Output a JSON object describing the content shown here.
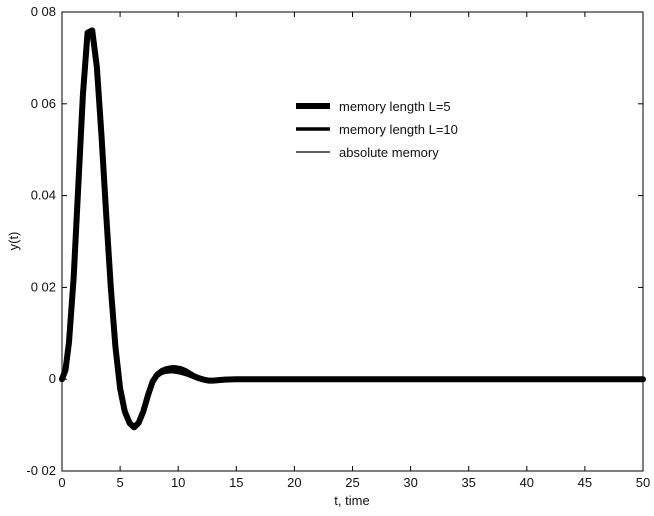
{
  "chart_data": {
    "type": "line",
    "title": "",
    "xlabel": "t, time",
    "ylabel": "y(t)",
    "xlim": [
      0,
      50
    ],
    "ylim": [
      -0.02,
      0.08
    ],
    "xticks": [
      0,
      5,
      10,
      15,
      20,
      25,
      30,
      35,
      40,
      45,
      50
    ],
    "xtick_labels": [
      "0",
      "5",
      "10",
      "15",
      "20",
      "25",
      "30",
      "35",
      "40",
      "45",
      "50"
    ],
    "yticks": [
      -0.02,
      0,
      0.02,
      0.04,
      0.06,
      0.08
    ],
    "ytick_labels": [
      "-0 02",
      "0",
      "0 02",
      "0.04",
      "0 06",
      "0 08"
    ],
    "grid": false,
    "legend_position": "upper-right",
    "series": [
      {
        "name": "memory length L=5",
        "color": "#000000",
        "x": [
          0,
          0.3,
          0.6,
          1.0,
          1.4,
          1.8,
          2.2,
          2.6,
          3.0,
          3.4,
          3.8,
          4.2,
          4.6,
          5.0,
          5.4,
          5.8,
          6.2,
          6.6,
          7.0,
          7.4,
          7.8,
          8.2,
          8.6,
          9.0,
          9.4,
          9.8,
          10.2,
          10.6,
          11.0,
          11.4,
          11.8,
          12.2,
          12.6,
          13.0,
          13.5,
          14.0,
          15.0,
          16.0,
          18.0,
          20.0,
          25.0,
          30.0,
          40.0,
          50.0
        ],
        "y": [
          0,
          0.002,
          0.008,
          0.022,
          0.042,
          0.062,
          0.0755,
          0.076,
          0.068,
          0.053,
          0.036,
          0.02,
          0.007,
          -0.002,
          -0.007,
          -0.0095,
          -0.0105,
          -0.0095,
          -0.007,
          -0.0035,
          -0.0005,
          0.001,
          0.0018,
          0.0022,
          0.0024,
          0.0024,
          0.0022,
          0.0018,
          0.0012,
          0.0006,
          0.0002,
          -0.0001,
          -0.0003,
          -0.0003,
          -0.0002,
          -0.0001,
          0,
          0,
          0,
          0,
          0,
          0,
          0,
          0
        ]
      },
      {
        "name": "memory length L=10",
        "color": "#000000",
        "x": [
          0,
          0.3,
          0.6,
          1.0,
          1.4,
          1.8,
          2.2,
          2.6,
          3.0,
          3.4,
          3.8,
          4.2,
          4.6,
          5.0,
          5.4,
          5.8,
          6.2,
          6.6,
          7.0,
          7.4,
          7.8,
          8.2,
          8.6,
          9.0,
          9.4,
          9.8,
          10.2,
          10.6,
          11.0,
          11.4,
          11.8,
          12.2,
          12.6,
          13.0,
          13.5,
          14.0,
          15.0,
          16.0,
          18.0,
          20.0,
          25.0,
          30.0,
          40.0,
          50.0
        ],
        "y": [
          0,
          0.002,
          0.008,
          0.022,
          0.042,
          0.062,
          0.0755,
          0.076,
          0.068,
          0.053,
          0.036,
          0.02,
          0.007,
          -0.002,
          -0.007,
          -0.0095,
          -0.0105,
          -0.0095,
          -0.007,
          -0.0037,
          -0.0008,
          0.0006,
          0.0013,
          0.0016,
          0.0017,
          0.0016,
          0.0014,
          0.0011,
          0.0007,
          0.0003,
          0,
          -0.0002,
          -0.0003,
          -0.0003,
          -0.0002,
          -0.0001,
          0,
          0,
          0,
          0,
          0,
          0,
          0,
          0
        ]
      },
      {
        "name": "absolute memory",
        "color": "#000000",
        "x": [
          0,
          0.3,
          0.6,
          1.0,
          1.4,
          1.8,
          2.2,
          2.6,
          3.0,
          3.4,
          3.8,
          4.2,
          4.6,
          5.0,
          5.4,
          5.8,
          6.2,
          6.6,
          7.0,
          7.4,
          7.8,
          8.2,
          8.6,
          9.0,
          9.4,
          9.8,
          10.2,
          10.6,
          11.0,
          11.4,
          11.8,
          12.2,
          12.6,
          13.0,
          13.5,
          14.0,
          15.0,
          16.0,
          18.0,
          20.0,
          25.0,
          30.0,
          40.0,
          50.0
        ],
        "y": [
          0,
          0.002,
          0.008,
          0.022,
          0.042,
          0.062,
          0.0755,
          0.076,
          0.068,
          0.053,
          0.036,
          0.02,
          0.007,
          -0.002,
          -0.007,
          -0.0095,
          -0.0105,
          -0.0095,
          -0.007,
          -0.0038,
          -0.001,
          0.0004,
          0.0011,
          0.0013,
          0.0014,
          0.0013,
          0.0011,
          0.0008,
          0.0005,
          0.0002,
          -0.0001,
          -0.0002,
          -0.0003,
          -0.0002,
          -0.0002,
          -0.0001,
          0,
          0,
          0,
          0,
          0,
          0,
          0,
          0
        ]
      }
    ]
  }
}
